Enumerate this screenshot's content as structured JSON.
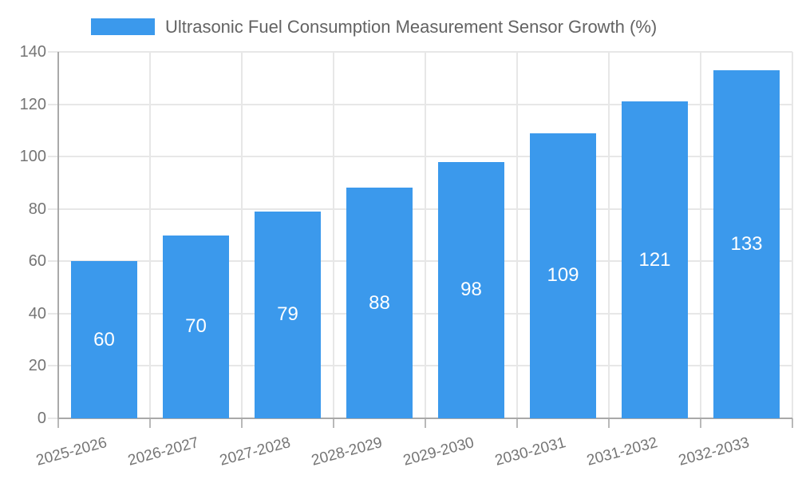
{
  "chart_data": {
    "type": "bar",
    "title": "Ultrasonic Fuel Consumption Measurement Sensor Growth (%)",
    "categories": [
      "2025-2026",
      "2026-2027",
      "2027-2028",
      "2028-2029",
      "2029-2030",
      "2030-2031",
      "2031-2032",
      "2032-2033"
    ],
    "values": [
      60,
      70,
      79,
      88,
      98,
      109,
      121,
      133
    ],
    "value_labels": [
      "60",
      "70",
      "79",
      "88",
      "98",
      "109",
      "121",
      "133"
    ],
    "xlabel": "",
    "ylabel": "",
    "ylim": [
      0,
      140
    ],
    "ytick_step": 20,
    "ytick_labels": [
      "0",
      "20",
      "40",
      "60",
      "80",
      "100",
      "120",
      "140"
    ],
    "grid": true,
    "legend_position": "top",
    "value_labels_inside_bars": true,
    "x_label_rotation_deg": -15
  },
  "colors": {
    "bar": "#3b99ec",
    "legend_text": "#636363",
    "axis_text": "#757575",
    "value_text": "#ffffff",
    "grid_line": "#e7e7e7",
    "axis_line": "#a9a9a9",
    "tick_line": "#b9b9b9",
    "background": "#ffffff"
  }
}
